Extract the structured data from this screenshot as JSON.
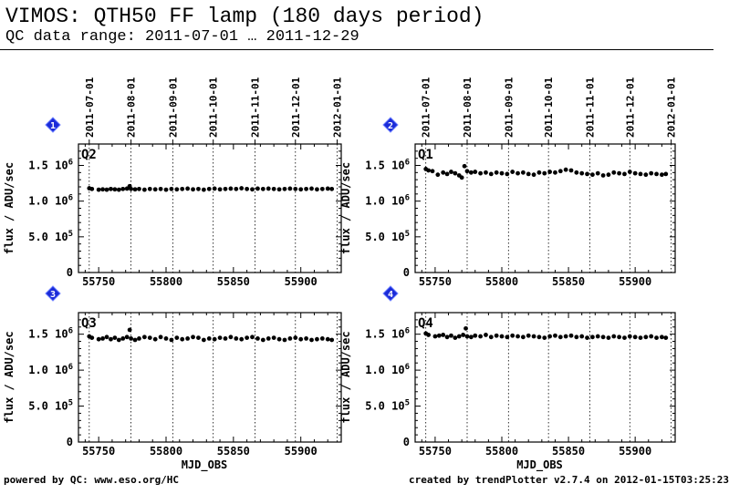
{
  "header": {
    "title": "VIMOS: QTH50 FF lamp (180 days period)",
    "subtitle": "QC data range: 2011-07-01 … 2011-12-29"
  },
  "footer": {
    "left": "powered by QC: www.eso.org/HC",
    "right": "created by trendPlotter v2.7.4 on 2012-01-15T03:25:23"
  },
  "colors": {
    "marker": "#000000",
    "badge": "#1a2bd8",
    "badge_text": "#ffffff"
  },
  "chart_data": [
    {
      "type": "scatter",
      "panel": "1",
      "label": "Q2",
      "xlabel": "",
      "ylabel": "flux / ADU/sec",
      "xlim": [
        55735,
        55930
      ],
      "ylim": [
        0,
        1800000
      ],
      "xticks": [
        55750,
        55800,
        55850,
        55900
      ],
      "yticks": [
        {
          "v": 0,
          "label": "0"
        },
        {
          "v": 500000,
          "label": "5.0 10^5"
        },
        {
          "v": 1000000,
          "label": "1.0 10^6"
        },
        {
          "v": 1500000,
          "label": "1.5 10^6"
        }
      ],
      "date_ticks": [
        {
          "mjd": 55743,
          "label": "2011-07-01"
        },
        {
          "mjd": 55774,
          "label": "2011-08-01"
        },
        {
          "mjd": 55805,
          "label": "2011-09-01"
        },
        {
          "mjd": 55835,
          "label": "2011-10-01"
        },
        {
          "mjd": 55866,
          "label": "2011-11-01"
        },
        {
          "mjd": 55896,
          "label": "2011-12-01"
        },
        {
          "mjd": 55927,
          "label": "2012-01-01"
        }
      ],
      "series": [
        {
          "x": [
            55743,
            55745,
            55750,
            55753,
            55756,
            55759,
            55762,
            55765,
            55768,
            55771,
            55773,
            55774,
            55777,
            55780,
            55784,
            55788,
            55792,
            55796,
            55800,
            55804,
            55808,
            55812,
            55816,
            55820,
            55824,
            55828,
            55832,
            55836,
            55840,
            55844,
            55848,
            55852,
            55856,
            55860,
            55864,
            55868,
            55872,
            55876,
            55880,
            55884,
            55888,
            55892,
            55896,
            55900,
            55904,
            55908,
            55912,
            55916,
            55920,
            55923
          ],
          "y": [
            1180000,
            1170000,
            1160000,
            1165000,
            1160000,
            1170000,
            1165000,
            1160000,
            1170000,
            1175000,
            1210000,
            1170000,
            1165000,
            1170000,
            1160000,
            1170000,
            1165000,
            1170000,
            1160000,
            1170000,
            1165000,
            1170000,
            1175000,
            1165000,
            1170000,
            1160000,
            1170000,
            1175000,
            1165000,
            1170000,
            1175000,
            1170000,
            1180000,
            1170000,
            1165000,
            1175000,
            1170000,
            1175000,
            1170000,
            1165000,
            1170000,
            1175000,
            1170000,
            1165000,
            1170000,
            1175000,
            1165000,
            1170000,
            1175000,
            1170000
          ]
        }
      ]
    },
    {
      "type": "scatter",
      "panel": "2",
      "label": "Q1",
      "xlabel": "",
      "ylabel": "flux / ADU/sec",
      "xlim": [
        55735,
        55930
      ],
      "ylim": [
        0,
        1800000
      ],
      "xticks": [
        55750,
        55800,
        55850,
        55900
      ],
      "yticks": [
        {
          "v": 0,
          "label": "0"
        },
        {
          "v": 500000,
          "label": "5.0 10^5"
        },
        {
          "v": 1000000,
          "label": "1.0 10^6"
        },
        {
          "v": 1500000,
          "label": "1.5 10^6"
        }
      ],
      "date_ticks": [
        {
          "mjd": 55743,
          "label": "2011-07-01"
        },
        {
          "mjd": 55774,
          "label": "2011-08-01"
        },
        {
          "mjd": 55805,
          "label": "2011-09-01"
        },
        {
          "mjd": 55835,
          "label": "2011-10-01"
        },
        {
          "mjd": 55866,
          "label": "2011-11-01"
        },
        {
          "mjd": 55896,
          "label": "2011-12-01"
        },
        {
          "mjd": 55927,
          "label": "2012-01-01"
        }
      ],
      "series": [
        {
          "x": [
            55743,
            55745,
            55748,
            55752,
            55756,
            55759,
            55762,
            55765,
            55768,
            55770,
            55772,
            55774,
            55777,
            55780,
            55784,
            55788,
            55792,
            55796,
            55800,
            55804,
            55808,
            55812,
            55816,
            55820,
            55824,
            55828,
            55832,
            55836,
            55840,
            55844,
            55848,
            55852,
            55856,
            55860,
            55864,
            55868,
            55872,
            55876,
            55880,
            55884,
            55888,
            55892,
            55896,
            55900,
            55904,
            55908,
            55912,
            55916,
            55920,
            55923
          ],
          "y": [
            1450000,
            1430000,
            1420000,
            1370000,
            1400000,
            1380000,
            1410000,
            1390000,
            1360000,
            1330000,
            1490000,
            1420000,
            1400000,
            1410000,
            1390000,
            1400000,
            1380000,
            1400000,
            1390000,
            1380000,
            1410000,
            1390000,
            1400000,
            1380000,
            1370000,
            1400000,
            1390000,
            1410000,
            1400000,
            1420000,
            1440000,
            1430000,
            1400000,
            1390000,
            1380000,
            1370000,
            1390000,
            1360000,
            1370000,
            1400000,
            1390000,
            1380000,
            1410000,
            1390000,
            1380000,
            1370000,
            1390000,
            1380000,
            1370000,
            1380000
          ]
        }
      ]
    },
    {
      "type": "scatter",
      "panel": "3",
      "label": "Q3",
      "xlabel": "MJD_OBS",
      "ylabel": "flux / ADU/sec",
      "xlim": [
        55735,
        55930
      ],
      "ylim": [
        0,
        1800000
      ],
      "xticks": [
        55750,
        55800,
        55850,
        55900
      ],
      "yticks": [
        {
          "v": 0,
          "label": "0"
        },
        {
          "v": 500000,
          "label": "5.0 10^5"
        },
        {
          "v": 1000000,
          "label": "1.0 10^6"
        },
        {
          "v": 1500000,
          "label": "1.5 10^6"
        }
      ],
      "series": [
        {
          "x": [
            55743,
            55745,
            55750,
            55753,
            55756,
            55759,
            55762,
            55765,
            55768,
            55771,
            55773,
            55774,
            55777,
            55780,
            55784,
            55788,
            55792,
            55796,
            55800,
            55804,
            55808,
            55812,
            55816,
            55820,
            55824,
            55828,
            55832,
            55836,
            55840,
            55844,
            55848,
            55852,
            55856,
            55860,
            55864,
            55868,
            55872,
            55876,
            55880,
            55884,
            55888,
            55892,
            55896,
            55900,
            55904,
            55908,
            55912,
            55916,
            55920,
            55923
          ],
          "y": [
            1470000,
            1450000,
            1430000,
            1440000,
            1460000,
            1430000,
            1450000,
            1420000,
            1440000,
            1460000,
            1560000,
            1440000,
            1420000,
            1440000,
            1460000,
            1450000,
            1430000,
            1460000,
            1440000,
            1420000,
            1450000,
            1430000,
            1440000,
            1460000,
            1450000,
            1420000,
            1440000,
            1430000,
            1450000,
            1440000,
            1460000,
            1440000,
            1430000,
            1450000,
            1460000,
            1440000,
            1420000,
            1440000,
            1450000,
            1430000,
            1420000,
            1440000,
            1450000,
            1430000,
            1440000,
            1420000,
            1430000,
            1440000,
            1430000,
            1420000
          ]
        }
      ]
    },
    {
      "type": "scatter",
      "panel": "4",
      "label": "Q4",
      "xlabel": "MJD_OBS",
      "ylabel": "flux / ADU/sec",
      "xlim": [
        55735,
        55930
      ],
      "ylim": [
        0,
        1800000
      ],
      "xticks": [
        55750,
        55800,
        55850,
        55900
      ],
      "yticks": [
        {
          "v": 0,
          "label": "0"
        },
        {
          "v": 500000,
          "label": "5.0 10^5"
        },
        {
          "v": 1000000,
          "label": "1.0 10^6"
        },
        {
          "v": 1500000,
          "label": "1.5 10^6"
        }
      ],
      "series": [
        {
          "x": [
            55743,
            55745,
            55750,
            55753,
            55756,
            55759,
            55762,
            55765,
            55768,
            55771,
            55773,
            55774,
            55777,
            55780,
            55784,
            55788,
            55792,
            55796,
            55800,
            55804,
            55808,
            55812,
            55816,
            55820,
            55824,
            55828,
            55832,
            55836,
            55840,
            55844,
            55848,
            55852,
            55856,
            55860,
            55864,
            55868,
            55872,
            55876,
            55880,
            55884,
            55888,
            55892,
            55896,
            55900,
            55904,
            55908,
            55912,
            55916,
            55920,
            55923
          ],
          "y": [
            1510000,
            1490000,
            1470000,
            1480000,
            1490000,
            1460000,
            1480000,
            1450000,
            1470000,
            1490000,
            1580000,
            1470000,
            1460000,
            1480000,
            1470000,
            1490000,
            1460000,
            1480000,
            1470000,
            1460000,
            1480000,
            1470000,
            1460000,
            1480000,
            1470000,
            1460000,
            1450000,
            1470000,
            1480000,
            1460000,
            1470000,
            1480000,
            1460000,
            1470000,
            1450000,
            1460000,
            1470000,
            1460000,
            1450000,
            1470000,
            1460000,
            1450000,
            1470000,
            1460000,
            1450000,
            1460000,
            1470000,
            1450000,
            1460000,
            1450000
          ]
        }
      ]
    }
  ]
}
